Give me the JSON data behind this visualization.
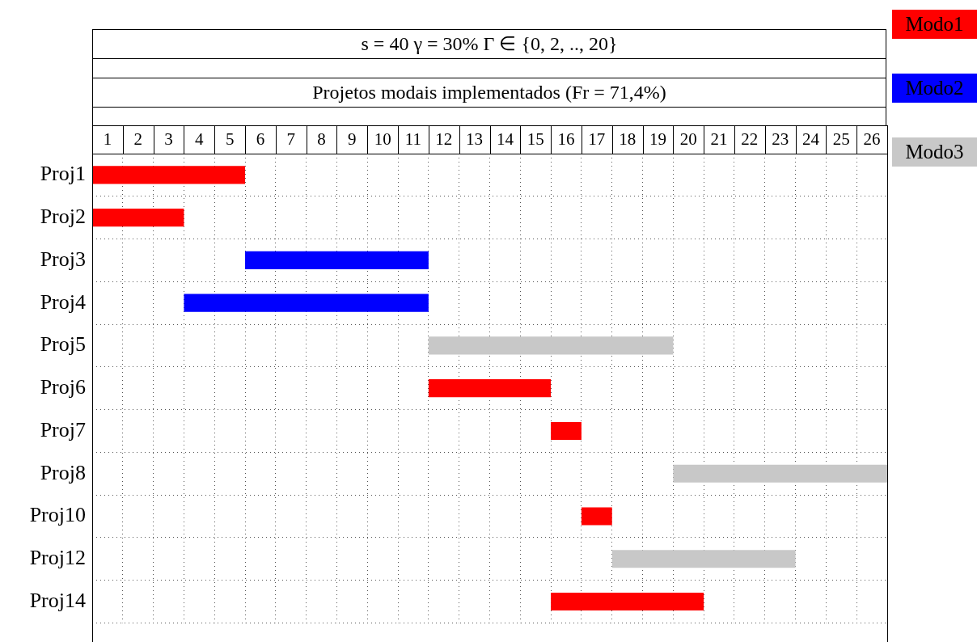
{
  "chart_data": {
    "type": "bar",
    "orientation": "horizontal",
    "title": "s = 40    γ = 30%    Γ ∈ {0, 2, .., 20}",
    "subtitle": "Projetos modais implementados (Fr = 71,4%)",
    "categories": [
      "Proj1",
      "Proj2",
      "Proj3",
      "Proj4",
      "Proj5",
      "Proj6",
      "Proj7",
      "Proj8",
      "Proj10",
      "Proj12",
      "Proj14"
    ],
    "series": [
      {
        "name": "Modo1",
        "color": "#ff0000",
        "base": [
          0,
          0,
          null,
          null,
          null,
          11,
          15,
          null,
          16,
          null,
          15
        ],
        "values": [
          5,
          3,
          null,
          null,
          null,
          4,
          1,
          null,
          1,
          null,
          5
        ]
      },
      {
        "name": "Modo2",
        "color": "#0000ff",
        "base": [
          null,
          null,
          5,
          3,
          null,
          null,
          null,
          null,
          null,
          null,
          null
        ],
        "values": [
          null,
          null,
          6,
          8,
          null,
          null,
          null,
          null,
          null,
          null,
          null
        ]
      },
      {
        "name": "Modo3",
        "color": "#c8c8c8",
        "base": [
          null,
          null,
          null,
          null,
          11,
          null,
          null,
          19,
          null,
          17,
          null
        ],
        "values": [
          null,
          null,
          null,
          null,
          8,
          null,
          null,
          7,
          null,
          6,
          null
        ]
      }
    ],
    "xlim": [
      0,
      26
    ],
    "xticks": [
      {
        "value": 0,
        "label": null
      },
      {
        "value": 0.5,
        "label": "1"
      },
      {
        "value": 1,
        "label": null
      },
      {
        "value": 1.5,
        "label": "2"
      },
      {
        "value": 2,
        "label": null
      },
      {
        "value": 2.5,
        "label": "3"
      },
      {
        "value": 3,
        "label": null
      },
      {
        "value": 3.5,
        "label": "4"
      },
      {
        "value": 4,
        "label": null
      },
      {
        "value": 4.5,
        "label": "5"
      },
      {
        "value": 5,
        "label": null
      },
      {
        "value": 5.5,
        "label": "6"
      },
      {
        "value": 6,
        "label": null
      },
      {
        "value": 6.5,
        "label": "7"
      },
      {
        "value": 7,
        "label": null
      },
      {
        "value": 7.5,
        "label": "8"
      },
      {
        "value": 8,
        "label": null
      },
      {
        "value": 8.5,
        "label": "9"
      },
      {
        "value": 9,
        "label": null
      },
      {
        "value": 9.5,
        "label": "10"
      },
      {
        "value": 10,
        "label": null
      },
      {
        "value": 10.5,
        "label": "11"
      },
      {
        "value": 11,
        "label": null
      },
      {
        "value": 11.5,
        "label": "12"
      },
      {
        "value": 12,
        "label": null
      },
      {
        "value": 12.5,
        "label": "13"
      },
      {
        "value": 13,
        "label": null
      },
      {
        "value": 13.5,
        "label": "14"
      },
      {
        "value": 14,
        "label": null
      },
      {
        "value": 14.5,
        "label": "15"
      },
      {
        "value": 15,
        "label": null
      },
      {
        "value": 15.5,
        "label": "16"
      },
      {
        "value": 16,
        "label": null
      },
      {
        "value": 16.5,
        "label": "17"
      },
      {
        "value": 17,
        "label": null
      },
      {
        "value": 17.5,
        "label": "18"
      },
      {
        "value": 18,
        "label": null
      },
      {
        "value": 18.5,
        "label": "19"
      },
      {
        "value": 19,
        "label": null
      },
      {
        "value": 19.5,
        "label": "20"
      },
      {
        "value": 20,
        "label": null
      },
      {
        "value": 20.5,
        "label": "21"
      },
      {
        "value": 21,
        "label": null
      },
      {
        "value": 21.5,
        "label": "22"
      },
      {
        "value": 22,
        "label": null
      },
      {
        "value": 22.5,
        "label": "23"
      },
      {
        "value": 23,
        "label": null
      },
      {
        "value": 23.5,
        "label": "24"
      },
      {
        "value": 24,
        "label": null
      },
      {
        "value": 24.5,
        "label": "25"
      },
      {
        "value": 25,
        "label": null
      },
      {
        "value": 25.5,
        "label": "26"
      },
      {
        "value": 26,
        "label": null
      }
    ],
    "grid": true,
    "legend": "right"
  }
}
